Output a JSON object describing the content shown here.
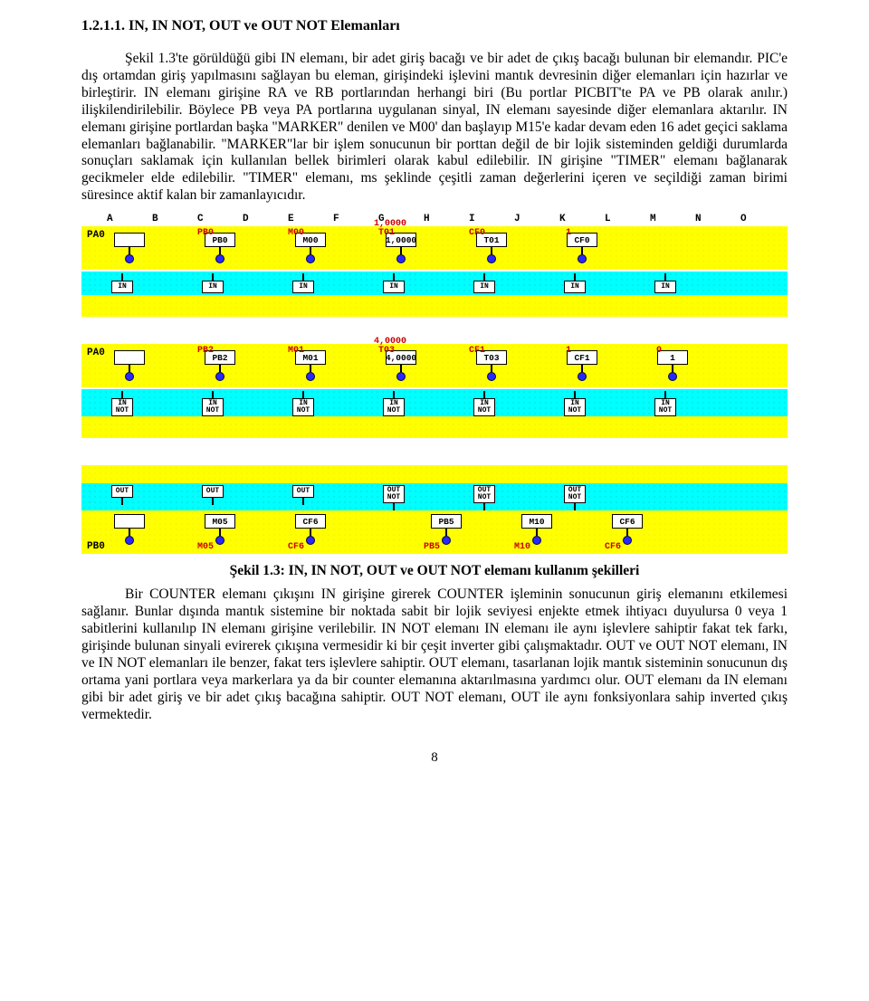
{
  "heading": "1.2.1.1. IN, IN NOT, OUT ve OUT NOT Elemanları",
  "para1": "Şekil 1.3'te görüldüğü gibi IN elemanı, bir adet giriş bacağı ve bir adet de çıkış bacağı bulunan bir elemandır. PIC'e dış ortamdan giriş yapılmasını sağlayan bu eleman, girişindeki işlevini mantık devresinin diğer elemanları için hazırlar ve birleştirir. IN elemanı girişine RA ve RB portlarından herhangi biri (Bu portlar PICBIT'te PA ve PB olarak anılır.) ilişkilendirilebilir. Böylece PB veya PA portlarına uygulanan sinyal, IN elemanı sayesinde diğer elemanlara aktarılır. IN elemanı girişine portlardan başka \"MARKER\" denilen ve M00' dan başlayıp M15'e kadar devam eden 16 adet geçici saklama elemanları bağlanabilir. \"MARKER\"lar bir işlem sonucunun bir porttan değil de bir lojik sisteminden geldiği durumlarda sonuçları saklamak için kullanılan bellek birimleri olarak kabul edilebilir. IN girişine \"TIMER\" elemanı bağlanarak gecikmeler elde edilebilir. \"TIMER\" elemanı, ms şeklinde çeşitli zaman değerlerini içeren ve seçildiği zaman birimi süresince aktif kalan bir zamanlayıcıdır.",
  "caption": "Şekil 1.3: IN, IN NOT, OUT ve OUT NOT elemanı kullanım şekilleri",
  "para2": "Bir COUNTER elemanı çıkışını IN girişine girerek COUNTER işleminin sonucunun giriş elemanını etkilemesi sağlanır. Bunlar dışında mantık sistemine bir noktada sabit bir lojik seviyesi enjekte etmek ihtiyacı duyulursa 0 veya 1 sabitlerini kullanılıp IN elemanı girişine verilebilir. IN NOT elemanı IN elemanı ile aynı işlevlere sahiptir fakat tek farkı, girişinde bulunan sinyali evirerek çıkışına vermesidir ki bir çeşit inverter gibi çalışmaktadır. OUT ve OUT NOT elemanı, IN ve IN NOT elemanları ile benzer, fakat ters işlevlere sahiptir. OUT elemanı, tasarlanan lojik mantık sisteminin sonucunun dış ortama yani portlara veya markerlara ya da bir counter elemanına aktarılmasına yardımcı olur. OUT elemanı da IN elemanı gibi bir adet giriş ve bir adet çıkış bacağına sahiptir. OUT NOT elemanı, OUT ile aynı fonksiyonlara sahip inverted çıkış vermektedir.",
  "page_no": "8",
  "columns": [
    "A",
    "B",
    "C",
    "D",
    "E",
    "F",
    "G",
    "H",
    "I",
    "J",
    "K",
    "L",
    "M",
    "N",
    "O"
  ],
  "diagram": {
    "colors": {
      "yellow": "#ffff00",
      "cyan": "#00ffff",
      "red_text": "#cc0000",
      "dot": "#2929ff"
    },
    "band1": {
      "side": "PA0",
      "tops": [
        {
          "col": 2,
          "text": "PB0"
        },
        {
          "col": 4,
          "text": "M00"
        },
        {
          "col": 6,
          "text": "1,0000"
        },
        {
          "col": 6,
          "text2": "T01"
        },
        {
          "col": 8,
          "text": "CF0"
        },
        {
          "col": 10,
          "text": "1"
        }
      ],
      "labels": [
        "IN",
        "",
        "IN",
        "",
        "IN",
        "",
        "IN",
        "",
        "IN",
        "",
        "IN",
        "",
        "IN",
        "",
        ""
      ]
    },
    "band2": {
      "side": "PA0",
      "tops": [
        {
          "col": 2,
          "text": "PB2"
        },
        {
          "col": 4,
          "text": "M01"
        },
        {
          "col": 6,
          "text": "4,0000"
        },
        {
          "col": 6,
          "text2": "T03"
        },
        {
          "col": 8,
          "text": "CF1"
        },
        {
          "col": 10,
          "text": "1"
        },
        {
          "col": 12,
          "text": "0"
        }
      ],
      "labels": [
        "IN\nNOT",
        "",
        "IN\nNOT",
        "",
        "IN\nNOT",
        "",
        "IN\nNOT",
        "",
        "IN\nNOT",
        "",
        "IN\nNOT",
        "",
        "IN\nNOT",
        "",
        ""
      ]
    },
    "band3": {
      "side_bottom": "PB0",
      "tops": [
        {
          "col": 2,
          "text": "M05"
        },
        {
          "col": 4,
          "text": "CF6"
        },
        {
          "col": 7,
          "text": "PB5"
        },
        {
          "col": 9,
          "text": "M10"
        },
        {
          "col": 11,
          "text": "CF6"
        }
      ],
      "labels": [
        "OUT",
        "",
        "OUT",
        "",
        "OUT",
        "",
        "OUT\nNOT",
        "",
        "OUT\nNOT",
        "",
        "OUT\nNOT",
        "",
        "",
        "",
        ""
      ]
    }
  }
}
